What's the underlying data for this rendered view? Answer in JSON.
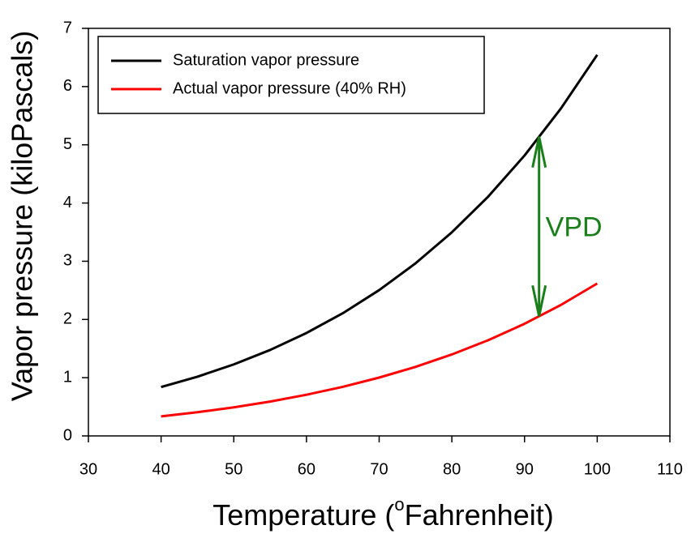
{
  "chart_data": {
    "type": "line",
    "x_label_parts": [
      "Temperature (",
      "o",
      "Fahrenheit)"
    ],
    "y_label": "Vapor pressure (kiloPascals)",
    "x": [
      40,
      45,
      50,
      55,
      60,
      65,
      70,
      75,
      80,
      85,
      90,
      95,
      100
    ],
    "series": [
      {
        "name": "Saturation vapor pressure",
        "color": "#000000",
        "values": [
          0.839,
          1.017,
          1.228,
          1.476,
          1.768,
          2.107,
          2.504,
          2.964,
          3.497,
          4.11,
          4.816,
          5.623,
          6.545
        ]
      },
      {
        "name": "Actual vapor pressure (40% RH)",
        "color": "#ff0000",
        "values": [
          0.336,
          0.407,
          0.491,
          0.59,
          0.707,
          0.843,
          1.002,
          1.186,
          1.399,
          1.644,
          1.926,
          2.249,
          2.618
        ]
      }
    ],
    "annotation": {
      "text": "VPD",
      "color": "#1a7f1a"
    },
    "xlim": [
      30,
      110
    ],
    "xticks": [
      30,
      40,
      50,
      60,
      70,
      80,
      90,
      100,
      110
    ],
    "ylim": [
      0,
      7
    ],
    "yticks": [
      0,
      1,
      2,
      3,
      4,
      5,
      6,
      7
    ],
    "legend": "upper-left"
  }
}
